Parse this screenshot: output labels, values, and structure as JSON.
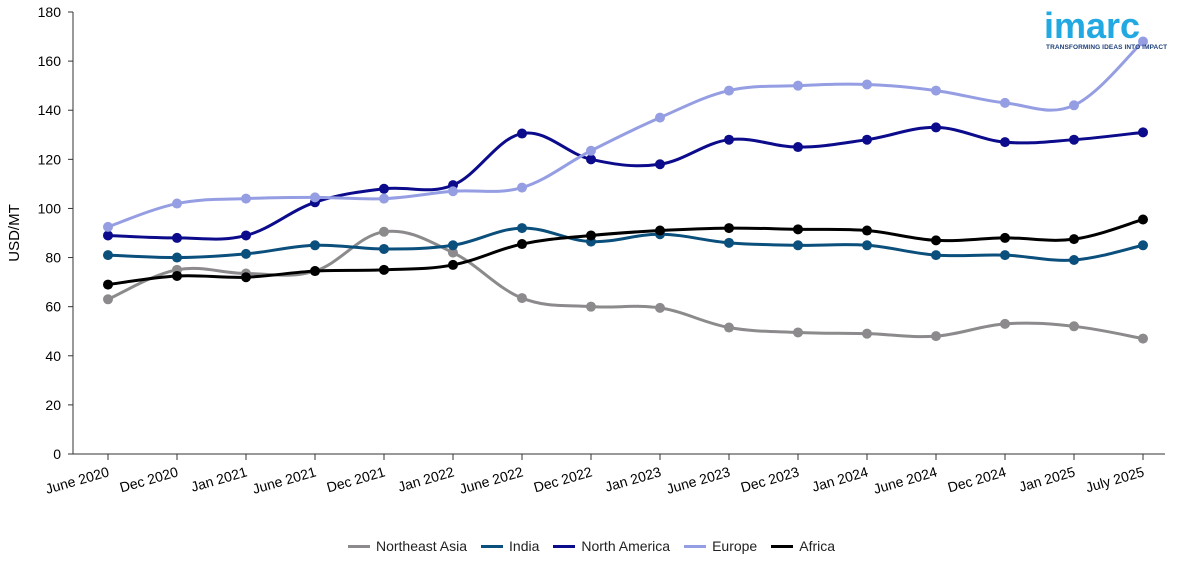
{
  "chart_data": {
    "type": "line",
    "title": "",
    "xlabel": "",
    "ylabel": "USD/MT",
    "ylim": [
      0,
      180
    ],
    "yticks": [
      0,
      20,
      40,
      60,
      80,
      100,
      120,
      140,
      160,
      180
    ],
    "grid": false,
    "legend_position": "bottom",
    "categories": [
      "June 2020",
      "Dec 2020",
      "Jan 2021",
      "June 2021",
      "Dec 2021",
      "Jan 2022",
      "June 2022",
      "Dec 2022",
      "Jan 2023",
      "June 2023",
      "Dec 2023",
      "Jan 2024",
      "June 2024",
      "Dec 2024",
      "Jan 2025",
      "July 2025"
    ],
    "series": [
      {
        "name": "Northeast Asia",
        "color": "#8c8a8c",
        "values": [
          63,
          75,
          73.5,
          74.5,
          90.5,
          82,
          63.5,
          60,
          59.5,
          51.5,
          49.5,
          49,
          48,
          53,
          52,
          47
        ]
      },
      {
        "name": "India",
        "color": "#0b4f7c",
        "values": [
          81,
          80,
          81.5,
          85,
          83.5,
          85,
          92,
          86.5,
          89.5,
          86,
          85,
          85,
          81,
          81,
          79,
          85
        ]
      },
      {
        "name": "North America",
        "color": "#0b0b8c",
        "values": [
          89,
          88,
          89,
          102.5,
          108,
          109.5,
          130.5,
          120,
          118,
          128,
          125,
          128,
          133,
          127,
          128,
          131
        ]
      },
      {
        "name": "Europe",
        "color": "#959ee3",
        "values": [
          92.5,
          102,
          104,
          104.5,
          104,
          107,
          108.5,
          123.5,
          137,
          148,
          150,
          150.5,
          148,
          143,
          142,
          168
        ]
      },
      {
        "name": "Africa",
        "color": "#000000",
        "values": [
          69,
          72.5,
          72,
          74.5,
          75,
          77,
          85.5,
          89,
          91,
          92,
          91.5,
          91,
          87,
          88,
          87.5,
          95.5
        ]
      }
    ]
  },
  "logo": {
    "word": "imarc",
    "tagline": "TRANSFORMING IDEAS INTO IMPACT"
  }
}
